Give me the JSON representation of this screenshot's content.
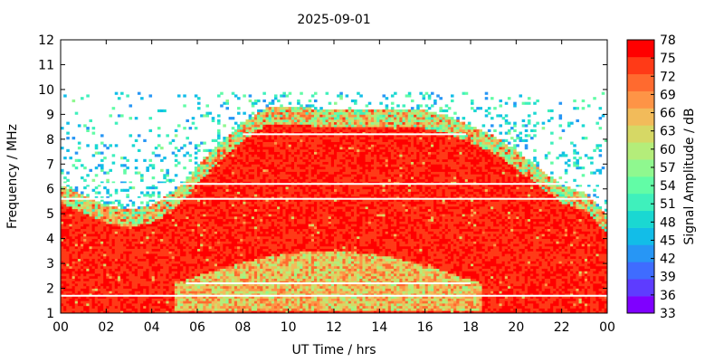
{
  "chart_data": {
    "type": "heatmap",
    "title": "2025-09-01",
    "xlabel": "UT Time / hrs",
    "ylabel": "Frequency / MHz",
    "colorbar_label": "Signal Amplitude / dB",
    "xlim": [
      0,
      24
    ],
    "ylim": [
      1,
      12
    ],
    "x_ticks": [
      "00",
      "02",
      "04",
      "06",
      "08",
      "10",
      "12",
      "14",
      "16",
      "18",
      "20",
      "22",
      "00"
    ],
    "y_ticks": [
      "1",
      "2",
      "3",
      "4",
      "5",
      "6",
      "7",
      "8",
      "9",
      "10",
      "11",
      "12"
    ],
    "colorbar_ticks": [
      "33",
      "36",
      "39",
      "42",
      "45",
      "48",
      "51",
      "54",
      "57",
      "60",
      "63",
      "66",
      "69",
      "72",
      "75",
      "78"
    ],
    "colorbar_range": [
      33,
      78
    ],
    "colorbar_colors": [
      "#7f00ff",
      "#5e3cff",
      "#3f6cff",
      "#2796f5",
      "#12bde8",
      "#1ad8d2",
      "#3ff0bc",
      "#62fca6",
      "#8ff88f",
      "#b4ed7a",
      "#d6d865",
      "#f2bb5a",
      "#fe9446",
      "#ff6a2f",
      "#ff3a17",
      "#ff0000"
    ],
    "sampled_upper_edge_mhz": {
      "hours": [
        0,
        1,
        2,
        3,
        4,
        5,
        5.7,
        6,
        7,
        8,
        9,
        10,
        11,
        12,
        13,
        14,
        15,
        16,
        17,
        18,
        19,
        20,
        21,
        22,
        23,
        24
      ],
      "freq": [
        5.8,
        5.4,
        5.0,
        4.8,
        5.0,
        5.6,
        6.2,
        6.6,
        7.5,
        8.3,
        8.9,
        9.0,
        8.9,
        8.8,
        8.8,
        8.8,
        8.8,
        8.8,
        8.6,
        8.2,
        7.8,
        7.2,
        6.5,
        5.8,
        5.5,
        4.6
      ]
    },
    "gaps_mhz": [
      8.2,
      6.2,
      5.6,
      2.2,
      1.7
    ],
    "grid": false
  }
}
